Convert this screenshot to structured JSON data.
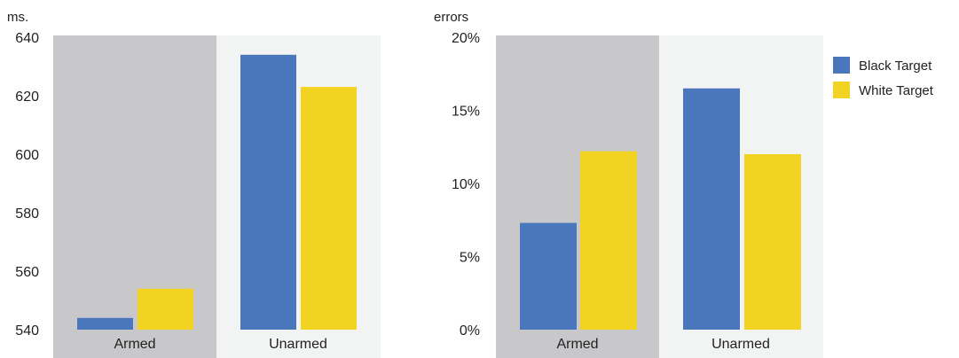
{
  "colors": {
    "series": [
      "#4a77bb",
      "#f3d321"
    ],
    "panel_armed": "#c8c8ca",
    "panel_unarmed": "#f2f3f3"
  },
  "legend": {
    "placement": "top-right",
    "items": [
      "Black Target",
      "White Target"
    ]
  },
  "chart_data": [
    {
      "type": "bar",
      "unit_label": "ms.",
      "categories": [
        "Armed",
        "Unarmed"
      ],
      "series": [
        {
          "name": "Black Target",
          "values": [
            544,
            634
          ]
        },
        {
          "name": "White Target",
          "values": [
            554,
            623
          ]
        }
      ],
      "ylim": [
        540,
        640
      ],
      "yticks": [
        540,
        560,
        580,
        600,
        620,
        640
      ],
      "ytick_labels": [
        "540",
        "560",
        "580",
        "600",
        "620",
        "640"
      ]
    },
    {
      "type": "bar",
      "unit_label": "errors",
      "categories": [
        "Armed",
        "Unarmed"
      ],
      "series": [
        {
          "name": "Black Target",
          "values": [
            7.3,
            16.5
          ]
        },
        {
          "name": "White Target",
          "values": [
            12.2,
            12.0
          ]
        }
      ],
      "ylim": [
        0,
        20
      ],
      "yticks": [
        0,
        5,
        10,
        15,
        20
      ],
      "ytick_labels": [
        "0%",
        "5%",
        "10%",
        "15%",
        "20%"
      ]
    }
  ]
}
